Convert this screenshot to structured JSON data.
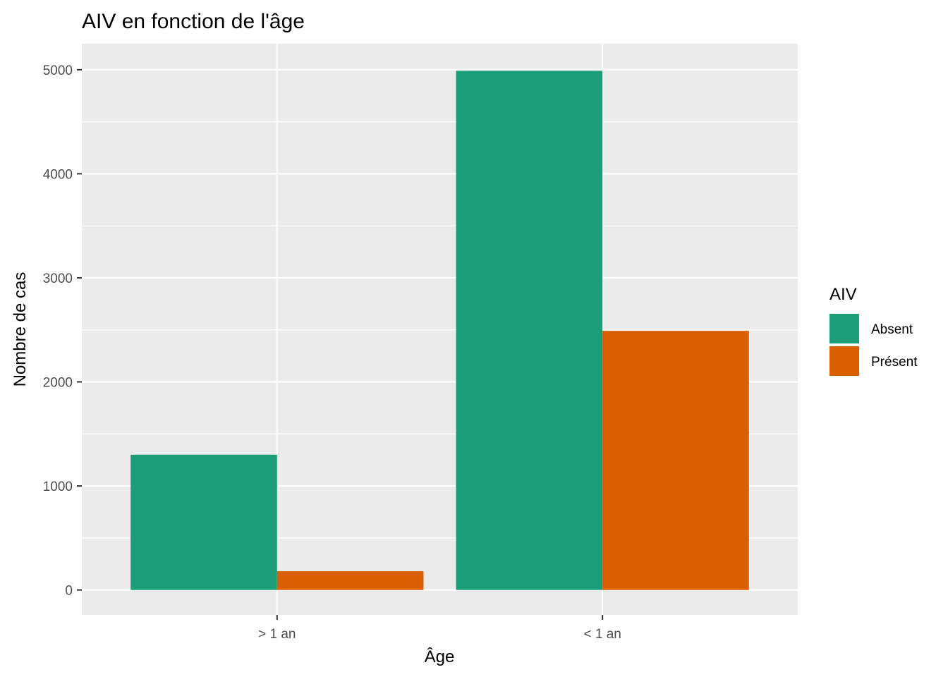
{
  "chart_data": {
    "type": "bar",
    "title": "AIV en fonction de l'âge",
    "xlabel": "Âge",
    "ylabel": "Nombre de cas",
    "categories": [
      "> 1 an",
      "< 1 an"
    ],
    "series": [
      {
        "name": "Absent",
        "values": [
          1300,
          4990
        ],
        "color": "#1B9E77"
      },
      {
        "name": "Présent",
        "values": [
          180,
          2490
        ],
        "color": "#D95F02"
      }
    ],
    "ylim": [
      -240,
      5250
    ],
    "yticks": [
      0,
      1000,
      2000,
      3000,
      4000,
      5000
    ],
    "grid": true,
    "panel_color": "#EBEBEB",
    "legend": {
      "title": "AIV",
      "position": "right"
    }
  }
}
